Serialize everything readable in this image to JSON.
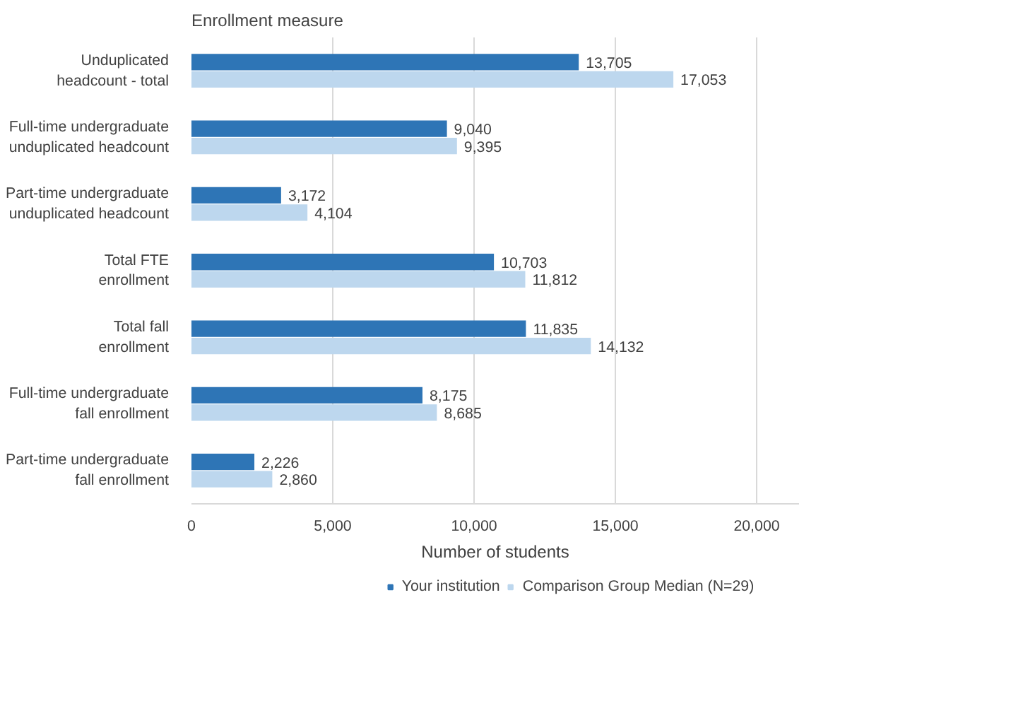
{
  "chart_data": {
    "type": "bar",
    "orientation": "horizontal",
    "ylabel": "Enrollment measure",
    "xlabel": "Number of students",
    "categories": [
      "Unduplicated headcount - total",
      "Full-time undergraduate unduplicated headcount",
      "Part-time undergraduate unduplicated headcount",
      "Total FTE enrollment",
      "Total fall enrollment",
      "Full-time undergraduate fall enrollment",
      "Part-time undergraduate fall enrollment"
    ],
    "series": [
      {
        "name": "Your institution",
        "color": "#2e75b6",
        "values": [
          13705,
          9040,
          3172,
          10703,
          11835,
          8175,
          2226
        ],
        "value_labels": [
          "13,705",
          "9,040",
          "3,172",
          "10,703",
          "11,835",
          "8,175",
          "2,226"
        ]
      },
      {
        "name": "Comparison Group Median (N=29)",
        "color": "#bdd7ee",
        "values": [
          17053,
          9395,
          4104,
          11812,
          14132,
          8685,
          2860
        ],
        "value_labels": [
          "17,053",
          "9,395",
          "4,104",
          "11,812",
          "14,132",
          "8,685",
          "2,860"
        ]
      }
    ],
    "xlim": [
      0,
      21500
    ],
    "xticks": [
      0,
      {
        "value": 5000,
        "label": "5,000"
      },
      {
        "value": 10000,
        "label": "10,000"
      },
      {
        "value": 15000,
        "label": "15,000"
      },
      {
        "value": 20000,
        "label": "20,000"
      }
    ],
    "grid": "x",
    "legend": "bottom"
  }
}
